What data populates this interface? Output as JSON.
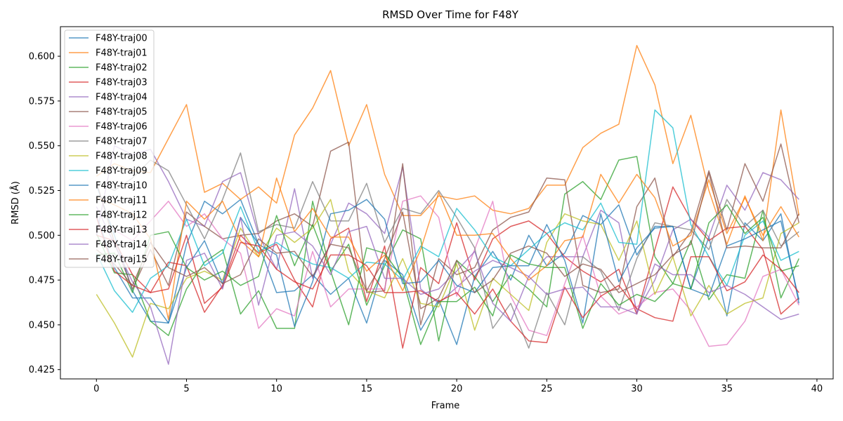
{
  "chart_data": {
    "type": "line",
    "title": "RMSD Over Time for F48Y",
    "xlabel": "Frame",
    "ylabel": "RMSD (Å)",
    "xlim": [
      -2,
      40.9
    ],
    "ylim": [
      0.4198,
      0.6165
    ],
    "xticks": [
      0,
      5,
      10,
      15,
      20,
      25,
      30,
      35,
      40
    ],
    "yticks": [
      0.425,
      0.45,
      0.475,
      0.5,
      0.525,
      0.55,
      0.575,
      0.6
    ],
    "ytick_labels": [
      "0.425",
      "0.450",
      "0.475",
      "0.500",
      "0.525",
      "0.550",
      "0.575",
      "0.600"
    ],
    "legend_position": "upper-left",
    "line_alpha": 0.75,
    "x": [
      0,
      1,
      2,
      3,
      4,
      5,
      6,
      7,
      8,
      9,
      10,
      11,
      12,
      13,
      14,
      15,
      16,
      17,
      18,
      19,
      20,
      21,
      22,
      23,
      24,
      25,
      26,
      27,
      28,
      29,
      30,
      31,
      32,
      33,
      34,
      35,
      36,
      37,
      38,
      39
    ],
    "series": [
      {
        "name": "F48Y-traj00",
        "color": "#1f77b4",
        "values": [
          0.528,
          0.5,
          0.469,
          0.452,
          0.451,
          0.495,
          0.519,
          0.512,
          0.52,
          0.495,
          0.468,
          0.469,
          0.478,
          0.467,
          0.476,
          0.451,
          0.486,
          0.478,
          0.447,
          0.464,
          0.439,
          0.477,
          0.491,
          0.475,
          0.5,
          0.483,
          0.49,
          0.511,
          0.506,
          0.517,
          0.489,
          0.505,
          0.505,
          0.47,
          0.499,
          0.455,
          0.507,
          0.497,
          0.512,
          0.462
        ]
      },
      {
        "name": "F48Y-traj01",
        "color": "#ff7f0e",
        "values": [
          0.533,
          0.54,
          0.536,
          0.535,
          0.554,
          0.573,
          0.524,
          0.529,
          0.52,
          0.527,
          0.518,
          0.556,
          0.571,
          0.592,
          0.55,
          0.573,
          0.534,
          0.511,
          0.511,
          0.522,
          0.52,
          0.522,
          0.514,
          0.512,
          0.515,
          0.528,
          0.528,
          0.549,
          0.557,
          0.562,
          0.606,
          0.584,
          0.54,
          0.567,
          0.525,
          0.495,
          0.522,
          0.497,
          0.57,
          0.511
        ]
      },
      {
        "name": "F48Y-traj02",
        "color": "#2ca02c",
        "values": [
          0.501,
          0.479,
          0.478,
          0.452,
          0.444,
          0.47,
          0.485,
          0.492,
          0.456,
          0.469,
          0.448,
          0.448,
          0.519,
          0.48,
          0.495,
          0.461,
          0.483,
          0.503,
          0.498,
          0.441,
          0.486,
          0.477,
          0.463,
          0.478,
          0.47,
          0.46,
          0.523,
          0.53,
          0.52,
          0.542,
          0.544,
          0.488,
          0.473,
          0.497,
          0.464,
          0.478,
          0.476,
          0.514,
          0.465,
          0.487
        ]
      },
      {
        "name": "F48Y-traj03",
        "color": "#d62728",
        "values": [
          0.5,
          0.497,
          0.478,
          0.468,
          0.485,
          0.483,
          0.457,
          0.472,
          0.5,
          0.49,
          0.495,
          0.475,
          0.46,
          0.498,
          0.504,
          0.463,
          0.494,
          0.437,
          0.482,
          0.473,
          0.507,
          0.475,
          0.498,
          0.505,
          0.508,
          0.501,
          0.488,
          0.48,
          0.474,
          0.481,
          0.456,
          0.492,
          0.527,
          0.509,
          0.497,
          0.504,
          0.505,
          0.492,
          0.456,
          0.465
        ]
      },
      {
        "name": "F48Y-traj04",
        "color": "#9467bd",
        "values": [
          0.5,
          0.55,
          0.545,
          0.548,
          0.53,
          0.509,
          0.505,
          0.53,
          0.535,
          0.5,
          0.481,
          0.526,
          0.476,
          0.495,
          0.518,
          0.512,
          0.501,
          0.538,
          0.47,
          0.462,
          0.471,
          0.48,
          0.486,
          0.482,
          0.477,
          0.488,
          0.488,
          0.488,
          0.514,
          0.507,
          0.457,
          0.475,
          0.503,
          0.509,
          0.499,
          0.528,
          0.514,
          0.535,
          0.531,
          0.52
        ]
      },
      {
        "name": "F48Y-traj05",
        "color": "#8c564b",
        "values": [
          0.53,
          0.496,
          0.47,
          0.492,
          0.472,
          0.513,
          0.505,
          0.498,
          0.5,
          0.501,
          0.508,
          0.512,
          0.505,
          0.547,
          0.552,
          0.468,
          0.469,
          0.54,
          0.45,
          0.487,
          0.478,
          0.482,
          0.503,
          0.51,
          0.513,
          0.532,
          0.531,
          0.472,
          0.468,
          0.47,
          0.516,
          0.532,
          0.488,
          0.502,
          0.536,
          0.503,
          0.54,
          0.519,
          0.551,
          0.507
        ]
      },
      {
        "name": "F48Y-traj06",
        "color": "#e377c2",
        "values": [
          0.505,
          0.503,
          0.497,
          0.508,
          0.519,
          0.505,
          0.512,
          0.498,
          0.49,
          0.448,
          0.459,
          0.455,
          0.491,
          0.46,
          0.47,
          0.47,
          0.47,
          0.519,
          0.522,
          0.51,
          0.466,
          0.492,
          0.519,
          0.466,
          0.447,
          0.444,
          0.473,
          0.5,
          0.466,
          0.456,
          0.46,
          0.468,
          0.47,
          0.458,
          0.438,
          0.439,
          0.452,
          0.477,
          0.481,
          0.461
        ]
      },
      {
        "name": "F48Y-traj07",
        "color": "#7f7f7f",
        "values": [
          0.53,
          0.525,
          0.532,
          0.542,
          0.536,
          0.517,
          0.498,
          0.52,
          0.546,
          0.502,
          0.506,
          0.504,
          0.53,
          0.508,
          0.508,
          0.529,
          0.496,
          0.515,
          0.512,
          0.525,
          0.51,
          0.493,
          0.448,
          0.462,
          0.437,
          0.468,
          0.45,
          0.488,
          0.48,
          0.458,
          0.487,
          0.507,
          0.505,
          0.503,
          0.492,
          0.52,
          0.505,
          0.514,
          0.494,
          0.502
        ]
      },
      {
        "name": "F48Y-traj08",
        "color": "#bcbd22",
        "values": [
          0.467,
          0.451,
          0.432,
          0.462,
          0.459,
          0.476,
          0.48,
          0.475,
          0.504,
          0.488,
          0.504,
          0.496,
          0.504,
          0.52,
          0.48,
          0.469,
          0.465,
          0.487,
          0.462,
          0.46,
          0.484,
          0.447,
          0.476,
          0.467,
          0.458,
          0.496,
          0.512,
          0.508,
          0.506,
          0.486,
          0.508,
          0.467,
          0.488,
          0.455,
          0.472,
          0.456,
          0.462,
          0.465,
          0.501,
          0.507
        ]
      },
      {
        "name": "F48Y-traj09",
        "color": "#17becf",
        "values": [
          0.49,
          0.469,
          0.457,
          0.476,
          0.483,
          0.509,
          0.483,
          0.49,
          0.516,
          0.491,
          0.496,
          0.489,
          0.484,
          0.482,
          0.476,
          0.485,
          0.484,
          0.475,
          0.494,
          0.488,
          0.515,
          0.503,
          0.488,
          0.483,
          0.492,
          0.501,
          0.507,
          0.503,
          0.518,
          0.496,
          0.495,
          0.57,
          0.56,
          0.506,
          0.488,
          0.472,
          0.5,
          0.508,
          0.486,
          0.491
        ]
      },
      {
        "name": "F48Y-traj10",
        "color": "#1f77b4",
        "values": [
          0.511,
          0.482,
          0.465,
          0.465,
          0.451,
          0.482,
          0.497,
          0.473,
          0.51,
          0.495,
          0.489,
          0.449,
          0.474,
          0.512,
          0.514,
          0.52,
          0.509,
          0.473,
          0.474,
          0.486,
          0.472,
          0.468,
          0.482,
          0.483,
          0.483,
          0.506,
          0.486,
          0.451,
          0.512,
          0.474,
          0.493,
          0.504,
          0.505,
          0.47,
          0.466,
          0.494,
          0.498,
          0.503,
          0.508,
          0.464
        ]
      },
      {
        "name": "F48Y-traj11",
        "color": "#ff7f0e",
        "values": [
          0.521,
          0.517,
          0.512,
          0.498,
          0.453,
          0.519,
          0.509,
          0.519,
          0.497,
          0.488,
          0.532,
          0.502,
          0.515,
          0.499,
          0.499,
          0.48,
          0.489,
          0.469,
          0.492,
          0.524,
          0.5,
          0.5,
          0.501,
          0.487,
          0.475,
          0.483,
          0.497,
          0.499,
          0.534,
          0.518,
          0.534,
          0.521,
          0.494,
          0.5,
          0.531,
          0.501,
          0.521,
          0.5,
          0.516,
          0.499
        ]
      },
      {
        "name": "F48Y-traj12",
        "color": "#2ca02c",
        "values": [
          0.489,
          0.49,
          0.468,
          0.5,
          0.502,
          0.482,
          0.475,
          0.48,
          0.472,
          0.477,
          0.511,
          0.483,
          0.506,
          0.48,
          0.45,
          0.493,
          0.49,
          0.476,
          0.439,
          0.463,
          0.463,
          0.471,
          0.455,
          0.489,
          0.484,
          0.482,
          0.482,
          0.448,
          0.473,
          0.461,
          0.467,
          0.463,
          0.473,
          0.47,
          0.507,
          0.517,
          0.501,
          0.51,
          0.48,
          0.483
        ]
      },
      {
        "name": "F48Y-traj13",
        "color": "#d62728",
        "values": [
          0.51,
          0.48,
          0.472,
          0.468,
          0.47,
          0.5,
          0.462,
          0.471,
          0.496,
          0.494,
          0.481,
          0.474,
          0.47,
          0.489,
          0.489,
          0.483,
          0.468,
          0.468,
          0.469,
          0.463,
          0.468,
          0.456,
          0.47,
          0.452,
          0.441,
          0.44,
          0.471,
          0.454,
          0.466,
          0.472,
          0.459,
          0.454,
          0.452,
          0.488,
          0.488,
          0.469,
          0.474,
          0.489,
          0.481,
          0.468
        ]
      },
      {
        "name": "F48Y-traj14",
        "color": "#9467bd",
        "values": [
          0.516,
          0.495,
          0.474,
          0.46,
          0.428,
          0.486,
          0.49,
          0.47,
          0.51,
          0.461,
          0.5,
          0.502,
          0.494,
          0.478,
          0.502,
          0.505,
          0.476,
          0.476,
          0.467,
          0.47,
          0.48,
          0.491,
          0.462,
          0.452,
          0.477,
          0.467,
          0.47,
          0.471,
          0.46,
          0.46,
          0.456,
          0.484,
          0.478,
          0.478,
          0.468,
          0.472,
          0.467,
          0.46,
          0.453,
          0.456
        ]
      },
      {
        "name": "F48Y-traj15",
        "color": "#8c564b",
        "values": [
          0.492,
          0.484,
          0.472,
          0.496,
          0.482,
          0.477,
          0.482,
          0.473,
          0.478,
          0.498,
          0.49,
          0.491,
          0.477,
          0.495,
          0.493,
          0.469,
          0.487,
          0.513,
          0.459,
          0.465,
          0.486,
          0.468,
          0.475,
          0.49,
          0.494,
          0.49,
          0.477,
          0.484,
          0.481,
          0.468,
          0.473,
          0.478,
          0.489,
          0.495,
          0.535,
          0.493,
          0.494,
          0.493,
          0.493,
          0.512
        ]
      }
    ]
  }
}
